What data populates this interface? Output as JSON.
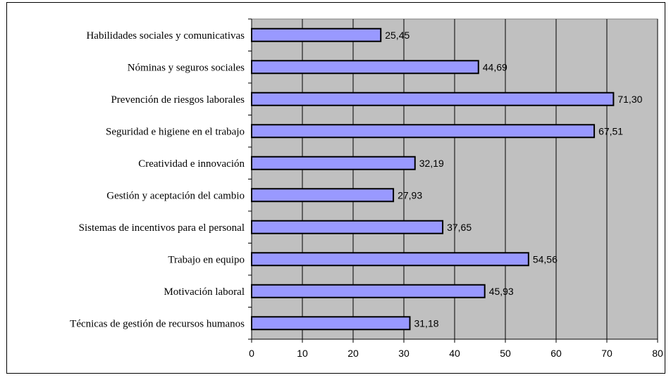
{
  "chart_data": {
    "type": "bar",
    "orientation": "horizontal",
    "categories": [
      "Habilidades sociales y comunicativas",
      "Nóminas y seguros sociales",
      "Prevención de riesgos laborales",
      "Seguridad e higiene en el trabajo",
      "Creatividad e innovación",
      "Gestión y aceptación del cambio",
      "Sistemas de incentivos para el personal",
      "Trabajo en equipo",
      "Motivación laboral",
      "Técnicas de gestión de recursos humanos"
    ],
    "values": [
      25.45,
      44.69,
      71.3,
      67.51,
      32.19,
      27.93,
      37.65,
      54.56,
      45.93,
      31.18
    ],
    "data_labels": [
      "25,45",
      "44,69",
      "71,30",
      "67,51",
      "32,19",
      "27,93",
      "37,65",
      "54,56",
      "45,93",
      "31,18"
    ],
    "x_ticks": [
      "0",
      "10",
      "20",
      "30",
      "40",
      "50",
      "60",
      "70",
      "80"
    ],
    "xlim": [
      0,
      80
    ],
    "grid": "vertical",
    "legend": "none",
    "colors": {
      "bar_fill": "#9999ff",
      "bar_stroke": "#000000",
      "plot_background": "#c0c0c0",
      "gridline": "#000000"
    }
  }
}
